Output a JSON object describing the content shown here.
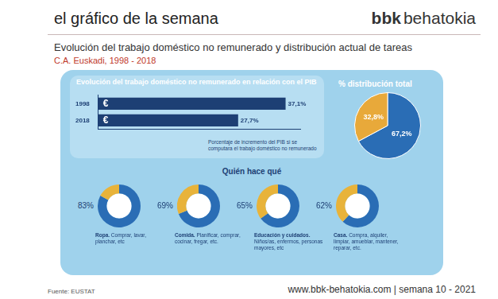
{
  "header": {
    "title": "el gráfico de la semana",
    "brand_bold": "bbk",
    "brand": "behatokia"
  },
  "subtitle": "Evolución del trabajo doméstico no remunerado y distribución actual de tareas",
  "region": "C.A. Euskadi, 1998 - 2018",
  "section_title": "Quién hace qué",
  "source": "Fuente: EUSTAT",
  "footer": "www.bbk-behatokia.com | semana 10 - 2021",
  "chart_data": [
    {
      "type": "bar",
      "orientation": "horizontal",
      "title": "Evolución del trabajo doméstico no remunerado en relación con el PIB",
      "categories": [
        "1998",
        "2018"
      ],
      "values": [
        37.1,
        27.7
      ],
      "value_labels": [
        "37,1%",
        "27,7%"
      ],
      "data_labels": true,
      "color": "#1d3f74",
      "xlim": [
        0,
        40
      ],
      "tick_labels": "y",
      "grid": false,
      "annotation": "€",
      "note": "Porcentaje de incremento del PIB si se computara el trabajo doméstico no remunerado"
    },
    {
      "type": "pie",
      "title": "% distribución total",
      "categories": [
        null,
        null
      ],
      "values": [
        67.2,
        32.8
      ],
      "value_labels": [
        "67,2%",
        "32,8%"
      ],
      "data_labels": true,
      "colors": [
        "#2a6db5",
        "#e8a93a"
      ]
    },
    {
      "type": "doughnut",
      "title": "Ropa.",
      "subtitle": "Comprar, lavar, planchar, etc",
      "values": [
        83,
        17
      ],
      "value_labels": [
        "83%",
        null
      ],
      "colors": [
        "#2a6db5",
        "#e8b33a"
      ]
    },
    {
      "type": "doughnut",
      "title": "Comida.",
      "subtitle": "Planificar, comprar, cocinar, fregar, etc.",
      "values": [
        69,
        31
      ],
      "value_labels": [
        "69%",
        null
      ],
      "colors": [
        "#2a6db5",
        "#e8b33a"
      ]
    },
    {
      "type": "doughnut",
      "title": "Educación y cuidados.",
      "subtitle": "Niños/as, enfermos, personas mayores, etc",
      "values": [
        65,
        35
      ],
      "value_labels": [
        "65%",
        null
      ],
      "colors": [
        "#2a6db5",
        "#e8b33a"
      ]
    },
    {
      "type": "doughnut",
      "title": "Casa.",
      "subtitle": "Compra, alquiler, limpiar, amueblar, mantener, reparar, etc.",
      "values": [
        62,
        38
      ],
      "value_labels": [
        "62%",
        null
      ],
      "colors": [
        "#2a6db5",
        "#e8b33a"
      ]
    }
  ]
}
